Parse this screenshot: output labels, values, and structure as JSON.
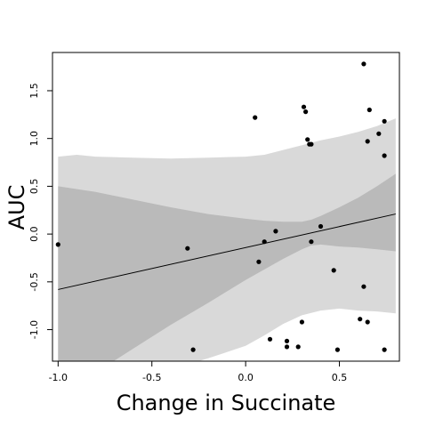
{
  "chart_data": {
    "type": "scatter",
    "title": "",
    "xlabel": "Change in Succinate",
    "ylabel": "AUC",
    "xlim": [
      -1.03,
      0.82
    ],
    "ylim": [
      -1.33,
      1.9
    ],
    "x_ticks": [
      -1.0,
      -0.5,
      0.0,
      0.5
    ],
    "x_tick_labels": [
      "-1.0",
      "-0.5",
      "0.0",
      "0.5"
    ],
    "y_ticks": [
      -1.0,
      -0.5,
      0.0,
      0.5,
      1.0,
      1.5
    ],
    "y_tick_labels": [
      "-1.0",
      "-0.5",
      "0.0",
      "0.5",
      "1.0",
      "1.5"
    ],
    "grid": false,
    "legend": "none",
    "colors": {
      "outer_band": "#d9d9d9",
      "inner_band": "#bababa",
      "points": "#000000",
      "fit_line": "#000000"
    },
    "fit_line": {
      "x": [
        -1.0,
        0.8
      ],
      "y": [
        -0.58,
        0.21
      ]
    },
    "inner_band": {
      "x": [
        -1.0,
        -0.8,
        -0.6,
        -0.4,
        -0.2,
        0.0,
        0.1,
        0.2,
        0.3,
        0.35,
        0.4,
        0.5,
        0.6,
        0.7,
        0.8
      ],
      "upper": [
        0.5,
        0.44,
        0.36,
        0.28,
        0.21,
        0.16,
        0.14,
        0.13,
        0.13,
        0.15,
        0.19,
        0.28,
        0.38,
        0.5,
        0.63
      ],
      "lower": [
        -1.66,
        -1.45,
        -1.2,
        -0.95,
        -0.72,
        -0.48,
        -0.37,
        -0.26,
        -0.16,
        -0.12,
        -0.11,
        -0.13,
        -0.14,
        -0.16,
        -0.18
      ]
    },
    "outer_band": {
      "x": [
        -1.0,
        -0.9,
        -0.8,
        -0.6,
        -0.4,
        -0.2,
        0.0,
        0.1,
        0.2,
        0.3,
        0.4,
        0.5,
        0.6,
        0.7,
        0.8
      ],
      "upper": [
        0.81,
        0.83,
        0.81,
        0.8,
        0.79,
        0.8,
        0.81,
        0.83,
        0.88,
        0.93,
        0.98,
        1.02,
        1.07,
        1.13,
        1.21
      ],
      "lower": [
        -2.0,
        -1.9,
        -1.75,
        -1.58,
        -1.42,
        -1.3,
        -1.17,
        -1.06,
        -0.94,
        -0.85,
        -0.8,
        -0.78,
        -0.8,
        -0.81,
        -0.83
      ]
    },
    "points": [
      {
        "x": -1.0,
        "y": -0.11
      },
      {
        "x": -0.31,
        "y": -0.15
      },
      {
        "x": -0.28,
        "y": -1.21
      },
      {
        "x": 0.05,
        "y": 1.22
      },
      {
        "x": 0.07,
        "y": -0.29
      },
      {
        "x": 0.1,
        "y": -0.08
      },
      {
        "x": 0.13,
        "y": -1.1
      },
      {
        "x": 0.16,
        "y": 0.03
      },
      {
        "x": 0.22,
        "y": -1.12
      },
      {
        "x": 0.22,
        "y": -1.18
      },
      {
        "x": 0.28,
        "y": -1.18
      },
      {
        "x": 0.3,
        "y": -0.92
      },
      {
        "x": 0.31,
        "y": 1.33
      },
      {
        "x": 0.32,
        "y": 1.28
      },
      {
        "x": 0.33,
        "y": 0.99
      },
      {
        "x": 0.34,
        "y": 0.94
      },
      {
        "x": 0.35,
        "y": 0.94
      },
      {
        "x": 0.35,
        "y": -0.08
      },
      {
        "x": 0.4,
        "y": 0.08
      },
      {
        "x": 0.47,
        "y": -0.38
      },
      {
        "x": 0.49,
        "y": -1.21
      },
      {
        "x": 0.61,
        "y": -0.89
      },
      {
        "x": 0.63,
        "y": -0.55
      },
      {
        "x": 0.63,
        "y": 1.78
      },
      {
        "x": 0.65,
        "y": 0.97
      },
      {
        "x": 0.65,
        "y": -0.92
      },
      {
        "x": 0.66,
        "y": 1.3
      },
      {
        "x": 0.71,
        "y": 1.05
      },
      {
        "x": 0.74,
        "y": 1.18
      },
      {
        "x": 0.74,
        "y": 0.82
      },
      {
        "x": 0.74,
        "y": -1.21
      }
    ]
  }
}
